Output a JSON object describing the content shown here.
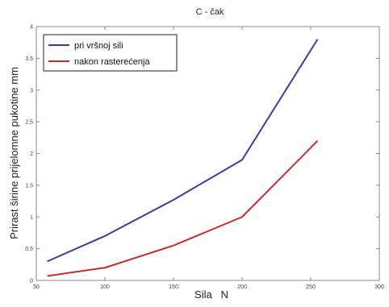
{
  "chart_data": {
    "type": "line",
    "title": "C - čak",
    "xlabel": "Sila   N",
    "ylabel": "Prirast širine prijelomne pukotine  mm",
    "xlim": [
      50,
      300
    ],
    "ylim": [
      0,
      4
    ],
    "xticks": [
      "50",
      "100",
      "150",
      "200",
      "250",
      "300"
    ],
    "yticks": [
      "0",
      "0.5",
      "1",
      "1.5",
      "2",
      "2.5",
      "3",
      "3.5",
      "4"
    ],
    "grid": false,
    "legend_position": "top-left",
    "series": [
      {
        "name": "pri vršnoj sili",
        "color": "#3a3aa8",
        "x": [
          58,
          100,
          150,
          200,
          255
        ],
        "y": [
          0.3,
          0.7,
          1.27,
          1.9,
          3.8
        ]
      },
      {
        "name": "nakon rasterećenja",
        "color": "#cc2a2a",
        "x": [
          58,
          100,
          150,
          200,
          255
        ],
        "y": [
          0.07,
          0.2,
          0.55,
          1.0,
          2.2
        ]
      }
    ]
  }
}
